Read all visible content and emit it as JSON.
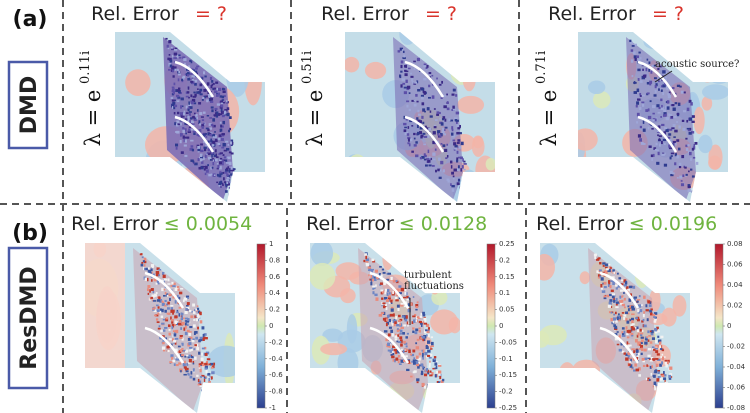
{
  "rows": [
    {
      "label": "(a)",
      "method": "DMD",
      "panels": [
        {
          "lambda_base": "λ = e",
          "lambda_exp": "0.11i",
          "error_label": "Rel. Error",
          "error_value": "= ?"
        },
        {
          "lambda_base": "λ = e",
          "lambda_exp": "0.51i",
          "error_label": "Rel. Error",
          "error_value": "= ?"
        },
        {
          "lambda_base": "λ = e",
          "lambda_exp": "0.71i",
          "error_label": "Rel. Error",
          "error_value": "= ?"
        }
      ]
    },
    {
      "label": "(b)",
      "method": "ResDMD",
      "panels": [
        {
          "error_label": "Rel. Error",
          "error_value": "≤ 0.0054",
          "colorbar_ticks": [
            1,
            0.8,
            0.6,
            0.4,
            0.2,
            0,
            -0.2,
            -0.4,
            -0.6,
            -0.8,
            -1
          ]
        },
        {
          "error_label": "Rel. Error",
          "error_value": "≤ 0.0128",
          "colorbar_ticks": [
            0.25,
            0.2,
            0.15,
            0.1,
            0.05,
            0,
            -0.05,
            -0.1,
            -0.15,
            -0.2,
            -0.25
          ]
        },
        {
          "error_label": "Rel. Error",
          "error_value": "≤ 0.0196",
          "colorbar_ticks": [
            0.08,
            0.06,
            0.04,
            0.02,
            0,
            -0.02,
            -0.04,
            -0.06,
            -0.08
          ]
        }
      ]
    }
  ],
  "annotations": {
    "acoustic_source": "acoustic source?",
    "turbulent": [
      "turbulent",
      "fluctuations"
    ]
  }
}
